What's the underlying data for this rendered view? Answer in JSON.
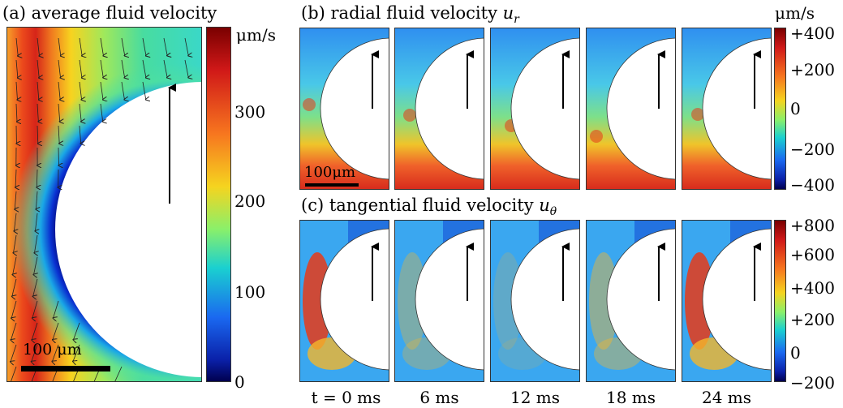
{
  "panels": {
    "a": {
      "title": "(a) average fluid velocity",
      "colorbar": {
        "unit": "μm/s",
        "ticks": [
          "300",
          "200",
          "100",
          "0"
        ],
        "colormap": [
          "#8b0000",
          "#d62020",
          "#f7701f",
          "#f5d21f",
          "#7cf26a",
          "#18c9d8",
          "#1a6ef0",
          "#0b21a8",
          "#02005a"
        ]
      },
      "scale_bar": "100 μm"
    },
    "b": {
      "title_prefix": "(b) radial fluid velocity",
      "title_symbol": "u",
      "title_subscript": "r",
      "colorbar": {
        "unit": "μm/s",
        "ticks": [
          "+400",
          "+200",
          "0",
          "−200",
          "−400"
        ]
      },
      "scale_bar": "100μm"
    },
    "c": {
      "title_prefix": "(c) tangential fluid velocity",
      "title_symbol": "u",
      "title_subscript": "θ",
      "colorbar": {
        "ticks": [
          "+800",
          "+600",
          "+400",
          "+200",
          "0",
          "−200"
        ]
      }
    }
  },
  "time_labels": [
    "t = 0 ms",
    "6 ms",
    "12 ms",
    "18 ms",
    "24 ms"
  ],
  "colors": {
    "background_field": "#3aa7f0",
    "hot": "#e83a18",
    "warm": "#f4b62c",
    "cool": "#1a5bd8",
    "circle": "#ffffff"
  }
}
